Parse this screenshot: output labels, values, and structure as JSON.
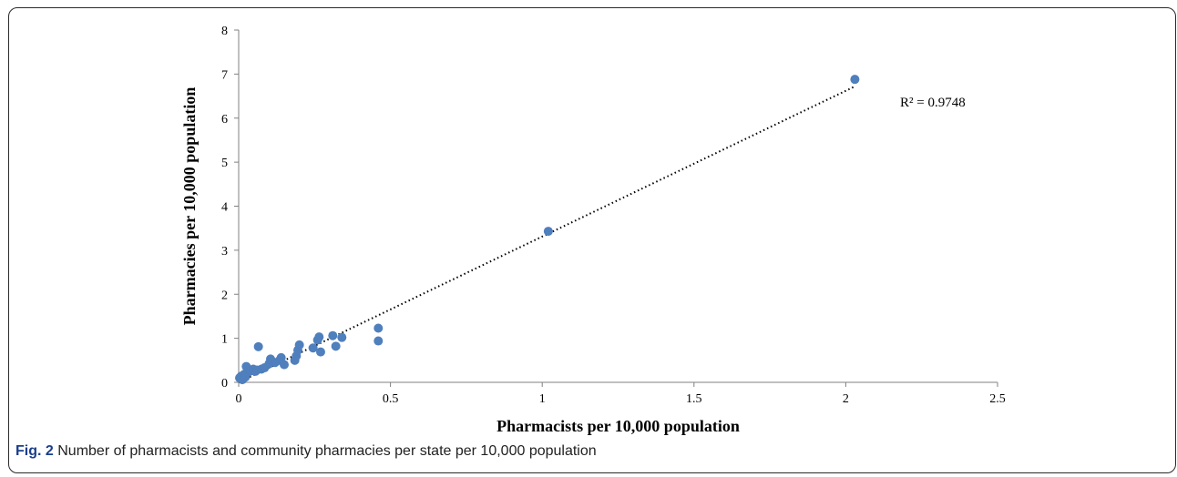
{
  "chart_data": {
    "type": "scatter",
    "xlabel": "Pharmacists per 10,000 population",
    "ylabel": "Pharmacies per 10,000 population",
    "xlim": [
      0,
      2.5
    ],
    "ylim": [
      0,
      8
    ],
    "x_ticks": [
      "0",
      "0.5",
      "1",
      "1.5",
      "2",
      "2.5"
    ],
    "y_ticks": [
      "0",
      "1",
      "2",
      "3",
      "4",
      "5",
      "6",
      "7",
      "8"
    ],
    "x_tick_values": [
      0,
      0.5,
      1,
      1.5,
      2,
      2.5
    ],
    "y_tick_values": [
      0,
      1,
      2,
      3,
      4,
      5,
      6,
      7,
      8
    ],
    "grid": false,
    "marker_color": "#4f7fbd",
    "trendline": {
      "style": "dotted",
      "color": "#000000",
      "x": [
        0,
        2.03
      ],
      "y": [
        0,
        6.72
      ]
    },
    "annotation": {
      "text": "R² = 0.9748"
    },
    "points": [
      {
        "x": 0.003,
        "y": 0.1
      },
      {
        "x": 0.008,
        "y": 0.14
      },
      {
        "x": 0.012,
        "y": 0.06
      },
      {
        "x": 0.018,
        "y": 0.18
      },
      {
        "x": 0.022,
        "y": 0.12
      },
      {
        "x": 0.025,
        "y": 0.36
      },
      {
        "x": 0.03,
        "y": 0.22
      },
      {
        "x": 0.035,
        "y": 0.28
      },
      {
        "x": 0.04,
        "y": 0.26
      },
      {
        "x": 0.048,
        "y": 0.3
      },
      {
        "x": 0.055,
        "y": 0.25
      },
      {
        "x": 0.06,
        "y": 0.28
      },
      {
        "x": 0.065,
        "y": 0.81
      },
      {
        "x": 0.075,
        "y": 0.3
      },
      {
        "x": 0.085,
        "y": 0.33
      },
      {
        "x": 0.1,
        "y": 0.42
      },
      {
        "x": 0.105,
        "y": 0.53
      },
      {
        "x": 0.12,
        "y": 0.45
      },
      {
        "x": 0.135,
        "y": 0.5
      },
      {
        "x": 0.14,
        "y": 0.56
      },
      {
        "x": 0.15,
        "y": 0.4
      },
      {
        "x": 0.185,
        "y": 0.5
      },
      {
        "x": 0.19,
        "y": 0.6
      },
      {
        "x": 0.195,
        "y": 0.73
      },
      {
        "x": 0.2,
        "y": 0.85
      },
      {
        "x": 0.245,
        "y": 0.78
      },
      {
        "x": 0.26,
        "y": 0.96
      },
      {
        "x": 0.265,
        "y": 1.03
      },
      {
        "x": 0.27,
        "y": 0.69
      },
      {
        "x": 0.31,
        "y": 1.06
      },
      {
        "x": 0.32,
        "y": 0.82
      },
      {
        "x": 0.34,
        "y": 1.02
      },
      {
        "x": 0.46,
        "y": 1.23
      },
      {
        "x": 0.46,
        "y": 0.94
      },
      {
        "x": 1.02,
        "y": 3.43
      },
      {
        "x": 2.03,
        "y": 6.88
      }
    ]
  },
  "caption": {
    "label": "Fig. 2",
    "text": "Number of pharmacists and community pharmacies per state per 10,000 population"
  }
}
